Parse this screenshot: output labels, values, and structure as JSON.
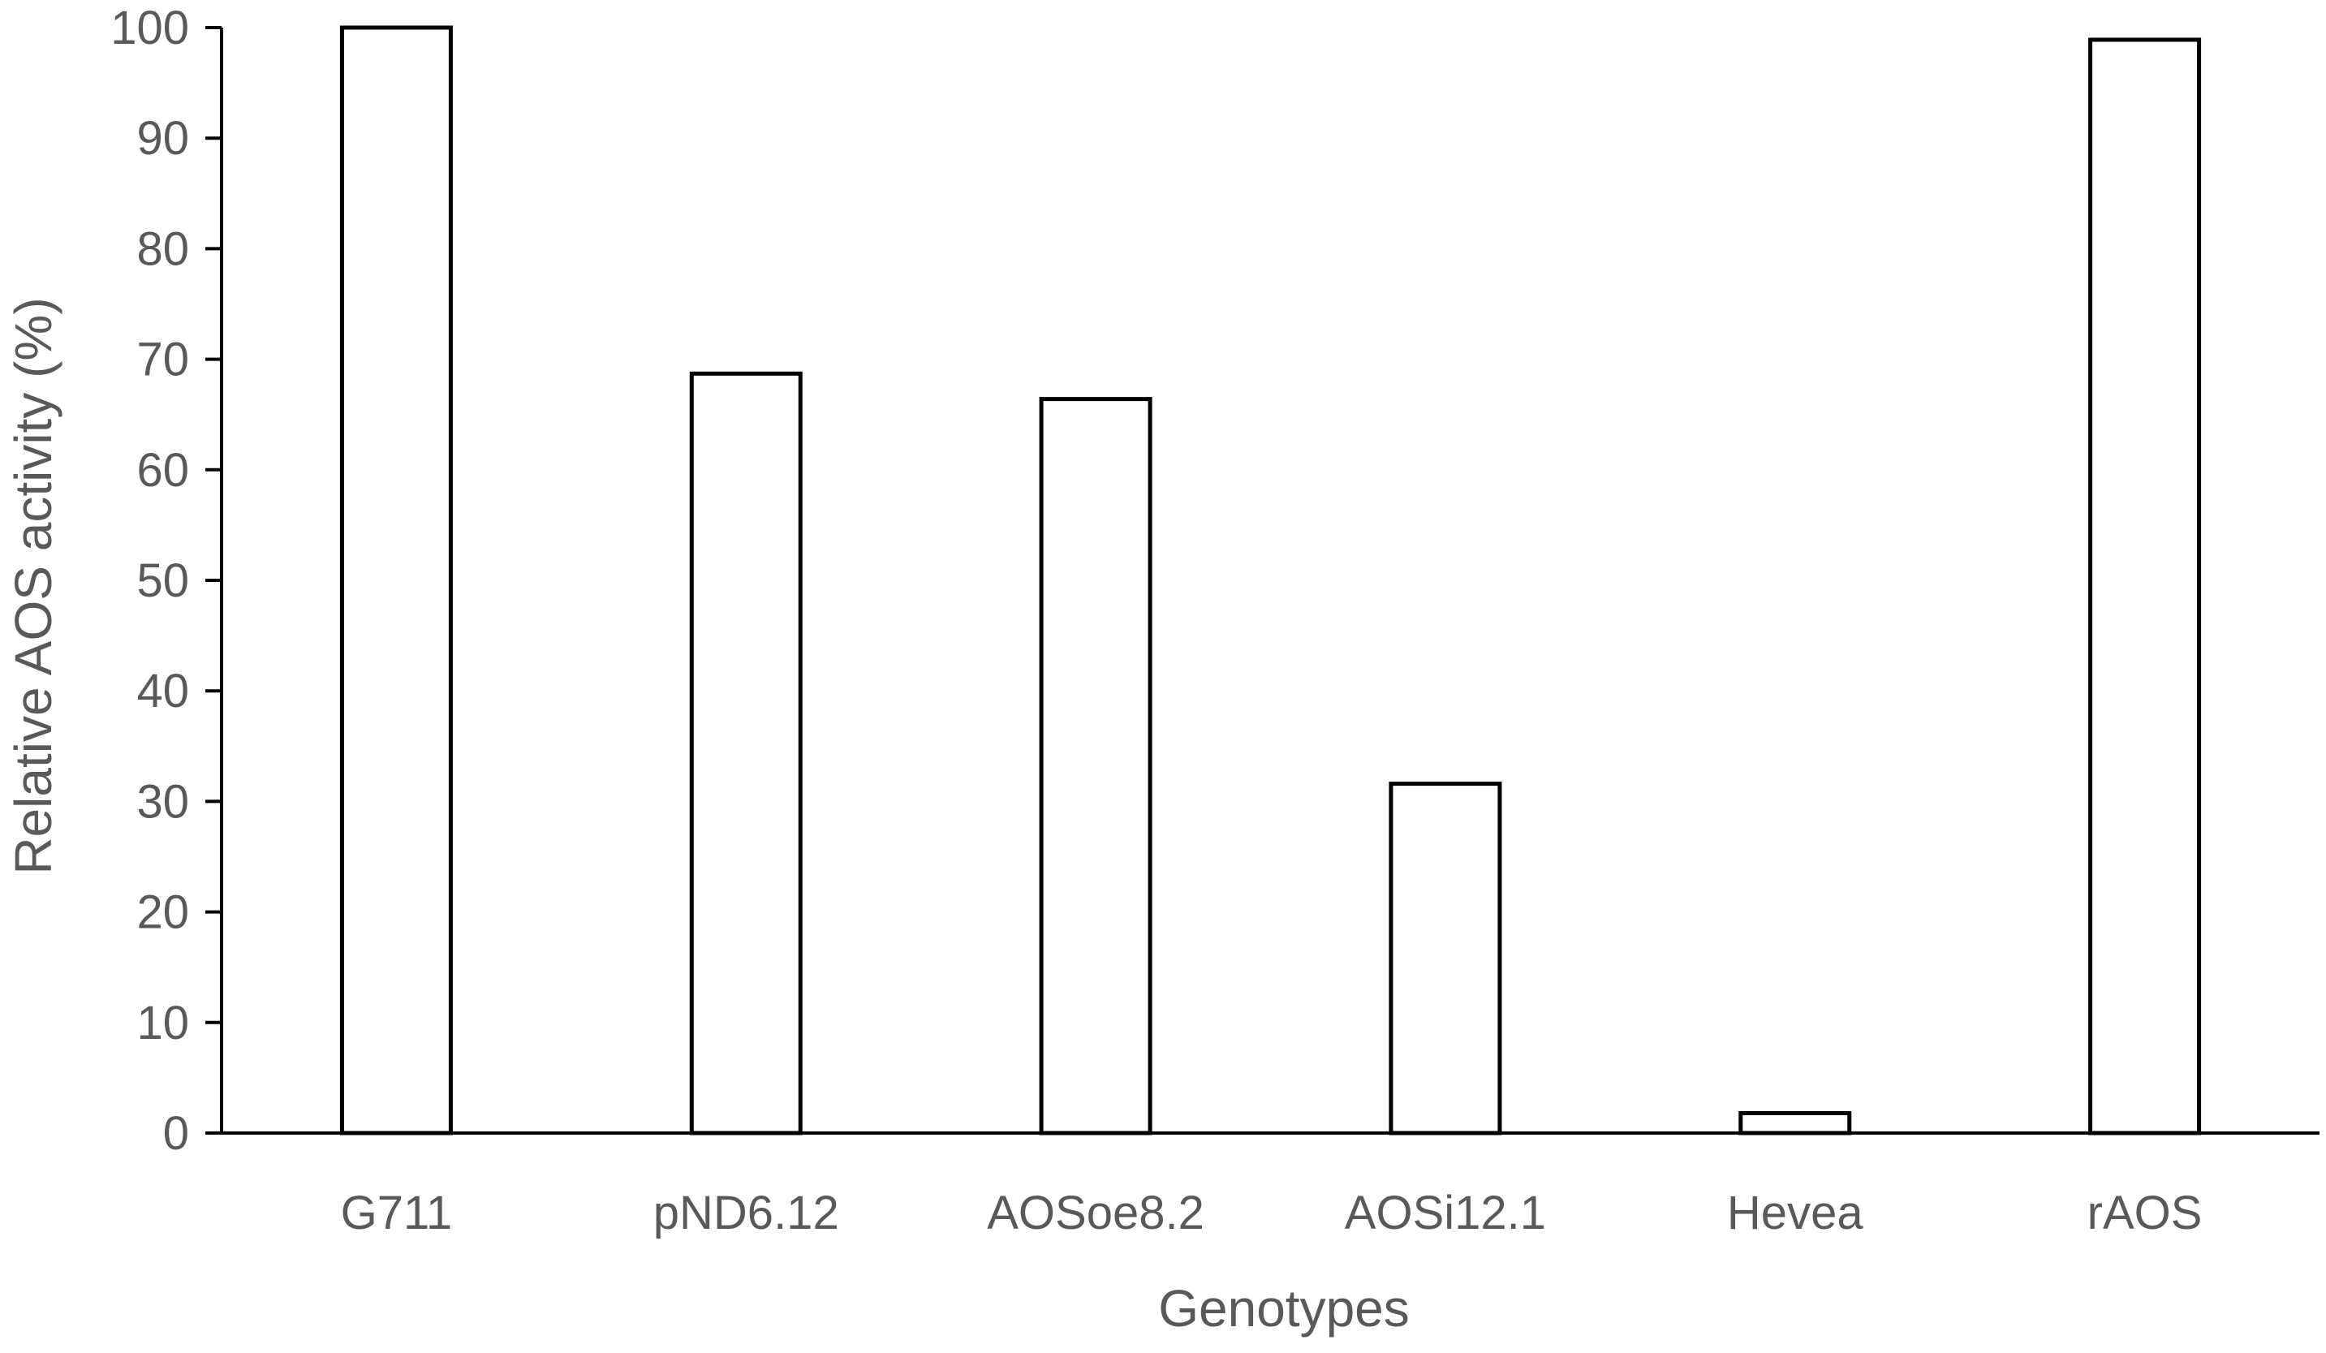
{
  "chart_data": {
    "type": "bar",
    "categories": [
      "G711",
      "pND6.12",
      "AOSoe8.2",
      "AOSi12.1",
      "Hevea",
      "rAOS"
    ],
    "values": [
      100,
      68.7,
      66.4,
      31.6,
      1.8,
      98.9
    ],
    "xlabel": "Genotypes",
    "ylabel": "Relative AOS activity (%)",
    "ylim": [
      0,
      100
    ],
    "yticks": [
      0,
      10,
      20,
      30,
      40,
      50,
      60,
      70,
      80,
      90,
      100
    ],
    "grid": false,
    "legend": "none",
    "colors": {
      "bar_fill": "#ffffff",
      "bar_stroke": "#000000",
      "axis": "#000000",
      "text": "#595959"
    }
  }
}
